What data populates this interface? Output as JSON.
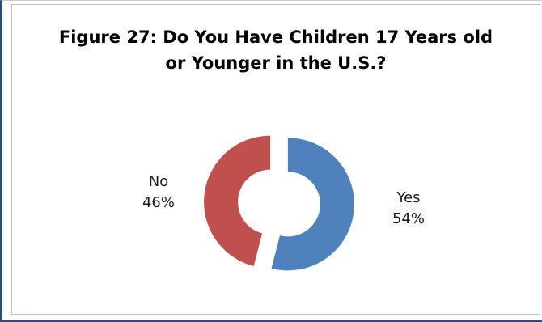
{
  "chart_data": {
    "type": "pie",
    "variant": "exploded-doughnut",
    "title": "Figure 27: Do You Have Children 17 Years old or Younger in the U.S.?",
    "title_lines": [
      "Figure 27: Do You Have Children 17 Years old",
      "or Younger in the U.S.?"
    ],
    "categories": [
      "Yes",
      "No"
    ],
    "values": [
      54,
      46
    ],
    "percent_labels": [
      "54%",
      "46%"
    ],
    "colors": [
      "#4f81bd",
      "#c0504d"
    ],
    "legend": "none"
  }
}
